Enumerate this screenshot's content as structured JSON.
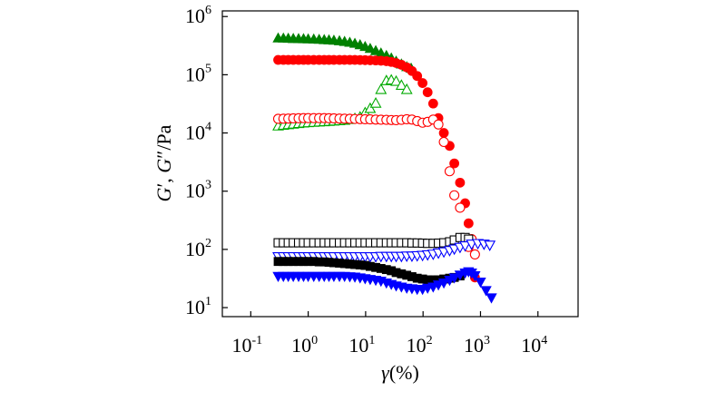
{
  "chart_data": {
    "type": "scatter",
    "xscale": "log",
    "yscale": "log",
    "xlim": [
      0.032,
      50000
    ],
    "ylim": [
      7,
      1250000
    ],
    "xlabel": {
      "italic": "γ",
      "rest": "(%)"
    },
    "ylabel": {
      "g1": "G",
      "p1": "′, ",
      "g2": "G",
      "p2": "″/Pa"
    },
    "x_ticks": [
      {
        "base": "10",
        "exp": "-1",
        "value": 0.1
      },
      {
        "base": "10",
        "exp": "0",
        "value": 1
      },
      {
        "base": "10",
        "exp": "1",
        "value": 10
      },
      {
        "base": "10",
        "exp": "2",
        "value": 100
      },
      {
        "base": "10",
        "exp": "3",
        "value": 1000
      },
      {
        "base": "10",
        "exp": "4",
        "value": 10000
      }
    ],
    "y_ticks": [
      {
        "base": "10",
        "exp": "1",
        "value": 10
      },
      {
        "base": "10",
        "exp": "2",
        "value": 100
      },
      {
        "base": "10",
        "exp": "3",
        "value": 1000
      },
      {
        "base": "10",
        "exp": "4",
        "value": 10000
      },
      {
        "base": "10",
        "exp": "5",
        "value": 100000
      },
      {
        "base": "10",
        "exp": "6",
        "value": 1000000
      }
    ],
    "series": [
      {
        "name": "green-G-prime",
        "marker": "triangle-up",
        "filled": true,
        "color": "#008000",
        "points": [
          [
            0.3,
            420000
          ],
          [
            0.37,
            418000
          ],
          [
            0.45,
            415000
          ],
          [
            0.55,
            412000
          ],
          [
            0.68,
            410000
          ],
          [
            0.83,
            408000
          ],
          [
            1.0,
            405000
          ],
          [
            1.25,
            402000
          ],
          [
            1.55,
            398000
          ],
          [
            1.9,
            394000
          ],
          [
            2.3,
            390000
          ],
          [
            2.8,
            384000
          ],
          [
            3.5,
            376000
          ],
          [
            4.3,
            366000
          ],
          [
            5.3,
            354000
          ],
          [
            6.5,
            340000
          ],
          [
            8.0,
            322000
          ],
          [
            9.8,
            300000
          ],
          [
            12,
            278000
          ],
          [
            15,
            255000
          ],
          [
            18.5,
            232000
          ],
          [
            23,
            210000
          ],
          [
            28,
            190000
          ],
          [
            34,
            168000
          ],
          [
            42,
            150000
          ],
          [
            52,
            135000
          ],
          [
            62,
            127000
          ]
        ]
      },
      {
        "name": "green-G-double-prime",
        "marker": "triangle-up",
        "filled": false,
        "color": "#00aa00",
        "points": [
          [
            0.3,
            13000
          ],
          [
            0.37,
            13400
          ],
          [
            0.45,
            13700
          ],
          [
            0.55,
            14000
          ],
          [
            0.68,
            14300
          ],
          [
            0.83,
            14600
          ],
          [
            1.0,
            14800
          ],
          [
            1.25,
            15000
          ],
          [
            1.55,
            15200
          ],
          [
            1.9,
            15400
          ],
          [
            2.3,
            15600
          ],
          [
            2.8,
            15800
          ],
          [
            3.5,
            16000
          ],
          [
            4.3,
            16300
          ],
          [
            5.3,
            16800
          ],
          [
            6.5,
            17500
          ],
          [
            8.0,
            18500
          ],
          [
            9.8,
            22000
          ],
          [
            12,
            26000
          ],
          [
            15,
            32000
          ],
          [
            18.5,
            55000
          ],
          [
            23,
            78000
          ],
          [
            28,
            80000
          ],
          [
            34,
            76000
          ],
          [
            42,
            65000
          ],
          [
            52,
            55000
          ]
        ]
      },
      {
        "name": "red-G-prime",
        "marker": "circle",
        "filled": true,
        "color": "#ff0000",
        "points": [
          [
            0.3,
            180000
          ],
          [
            0.37,
            180000
          ],
          [
            0.45,
            180000
          ],
          [
            0.55,
            180000
          ],
          [
            0.68,
            180000
          ],
          [
            0.83,
            180000
          ],
          [
            1.0,
            180000
          ],
          [
            1.25,
            180000
          ],
          [
            1.55,
            180000
          ],
          [
            1.9,
            180000
          ],
          [
            2.3,
            180000
          ],
          [
            2.8,
            180000
          ],
          [
            3.5,
            180000
          ],
          [
            4.3,
            180000
          ],
          [
            5.3,
            180000
          ],
          [
            6.5,
            180000
          ],
          [
            8.0,
            179000
          ],
          [
            9.8,
            178000
          ],
          [
            12,
            177000
          ],
          [
            15,
            176000
          ],
          [
            18.5,
            174000
          ],
          [
            23,
            171000
          ],
          [
            28,
            166000
          ],
          [
            34,
            159000
          ],
          [
            42,
            148000
          ],
          [
            52,
            134000
          ],
          [
            64,
            116000
          ],
          [
            79,
            95000
          ],
          [
            98,
            72000
          ],
          [
            120,
            50000
          ],
          [
            150,
            32000
          ],
          [
            185,
            18000
          ],
          [
            230,
            10000
          ],
          [
            290,
            6000
          ],
          [
            350,
            3000
          ],
          [
            440,
            1400
          ],
          [
            540,
            620
          ],
          [
            620,
            280
          ],
          [
            800,
            33
          ]
        ]
      },
      {
        "name": "red-G-double-prime",
        "marker": "circle",
        "filled": false,
        "color": "#ff0000",
        "points": [
          [
            0.3,
            17500
          ],
          [
            0.37,
            17600
          ],
          [
            0.45,
            17700
          ],
          [
            0.55,
            17800
          ],
          [
            0.68,
            17900
          ],
          [
            0.83,
            18000
          ],
          [
            1.0,
            18000
          ],
          [
            1.25,
            18000
          ],
          [
            1.55,
            18000
          ],
          [
            1.9,
            18000
          ],
          [
            2.3,
            17900
          ],
          [
            2.8,
            17800
          ],
          [
            3.5,
            17700
          ],
          [
            4.3,
            17600
          ],
          [
            5.3,
            17500
          ],
          [
            6.5,
            17400
          ],
          [
            8.0,
            17300
          ],
          [
            9.8,
            17200
          ],
          [
            12,
            17100
          ],
          [
            15,
            17000
          ],
          [
            18.5,
            16900
          ],
          [
            23,
            16800
          ],
          [
            28,
            16700
          ],
          [
            34,
            16600
          ],
          [
            42,
            16800
          ],
          [
            52,
            17200
          ],
          [
            64,
            17000
          ],
          [
            79,
            16000
          ],
          [
            98,
            15000
          ],
          [
            120,
            15500
          ],
          [
            150,
            17000
          ],
          [
            185,
            14000
          ],
          [
            230,
            7000
          ],
          [
            290,
            2200
          ],
          [
            350,
            850
          ],
          [
            440,
            520
          ],
          [
            540,
            140
          ],
          [
            620,
            110
          ],
          [
            700,
            150
          ],
          [
            800,
            82
          ]
        ]
      },
      {
        "name": "black-G-double-prime",
        "marker": "square",
        "filled": false,
        "color": "#000000",
        "points": [
          [
            0.3,
            130
          ],
          [
            0.37,
            130
          ],
          [
            0.45,
            130
          ],
          [
            0.55,
            130
          ],
          [
            0.68,
            130
          ],
          [
            0.83,
            130
          ],
          [
            1.0,
            130
          ],
          [
            1.25,
            130
          ],
          [
            1.55,
            130
          ],
          [
            1.9,
            130
          ],
          [
            2.3,
            130
          ],
          [
            2.8,
            130
          ],
          [
            3.5,
            130
          ],
          [
            4.3,
            130
          ],
          [
            5.3,
            130
          ],
          [
            6.5,
            130
          ],
          [
            8.0,
            130
          ],
          [
            9.8,
            130
          ],
          [
            12,
            130
          ],
          [
            15,
            130
          ],
          [
            18.5,
            130
          ],
          [
            23,
            130
          ],
          [
            28,
            130
          ],
          [
            34,
            130
          ],
          [
            42,
            130
          ],
          [
            52,
            130
          ],
          [
            64,
            129
          ],
          [
            79,
            129
          ],
          [
            98,
            128
          ],
          [
            120,
            127
          ],
          [
            150,
            127
          ],
          [
            185,
            128
          ],
          [
            230,
            130
          ],
          [
            290,
            135
          ],
          [
            350,
            145
          ],
          [
            440,
            160
          ],
          [
            540,
            160
          ],
          [
            620,
            150
          ]
        ]
      },
      {
        "name": "blue-G-double-prime",
        "marker": "triangle-down",
        "filled": false,
        "color": "#0000ff",
        "points": [
          [
            0.3,
            76
          ],
          [
            0.37,
            76
          ],
          [
            0.45,
            76
          ],
          [
            0.55,
            76
          ],
          [
            0.68,
            76
          ],
          [
            0.83,
            76
          ],
          [
            1.0,
            76
          ],
          [
            1.25,
            76
          ],
          [
            1.55,
            76
          ],
          [
            1.9,
            76
          ],
          [
            2.3,
            76
          ],
          [
            2.8,
            76
          ],
          [
            3.5,
            76
          ],
          [
            4.3,
            76
          ],
          [
            5.3,
            76
          ],
          [
            6.5,
            76
          ],
          [
            8.0,
            76
          ],
          [
            9.8,
            76
          ],
          [
            12,
            76
          ],
          [
            15,
            76
          ],
          [
            18.5,
            77
          ],
          [
            23,
            77
          ],
          [
            28,
            77
          ],
          [
            34,
            77
          ],
          [
            42,
            77
          ],
          [
            52,
            78
          ],
          [
            64,
            78
          ],
          [
            79,
            79
          ],
          [
            98,
            80
          ],
          [
            120,
            82
          ],
          [
            150,
            84
          ],
          [
            185,
            88
          ],
          [
            230,
            92
          ],
          [
            290,
            97
          ],
          [
            350,
            103
          ],
          [
            440,
            110
          ],
          [
            540,
            117
          ],
          [
            700,
            125
          ],
          [
            900,
            128
          ],
          [
            1150,
            125
          ],
          [
            1450,
            120
          ]
        ]
      },
      {
        "name": "black-G-prime",
        "marker": "square",
        "filled": true,
        "color": "#000000",
        "points": [
          [
            0.3,
            62
          ],
          [
            0.37,
            62
          ],
          [
            0.45,
            62
          ],
          [
            0.55,
            62
          ],
          [
            0.68,
            62
          ],
          [
            0.83,
            62
          ],
          [
            1.0,
            62
          ],
          [
            1.25,
            62
          ],
          [
            1.55,
            61
          ],
          [
            1.9,
            61
          ],
          [
            2.3,
            60
          ],
          [
            2.8,
            59
          ],
          [
            3.5,
            58
          ],
          [
            4.3,
            57
          ],
          [
            5.3,
            56
          ],
          [
            6.5,
            55
          ],
          [
            8.0,
            54
          ],
          [
            9.8,
            53
          ],
          [
            12,
            51
          ],
          [
            15,
            49
          ],
          [
            18.5,
            47
          ],
          [
            23,
            45
          ],
          [
            28,
            43
          ],
          [
            34,
            40
          ],
          [
            42,
            38
          ],
          [
            52,
            36
          ],
          [
            64,
            34
          ],
          [
            79,
            32
          ],
          [
            98,
            31
          ],
          [
            120,
            30
          ],
          [
            150,
            30
          ],
          [
            185,
            30
          ],
          [
            230,
            31
          ],
          [
            290,
            32
          ],
          [
            350,
            33
          ],
          [
            440,
            35
          ]
        ]
      },
      {
        "name": "blue-G-prime",
        "marker": "triangle-down",
        "filled": true,
        "color": "#0000ff",
        "points": [
          [
            0.3,
            35
          ],
          [
            0.37,
            35
          ],
          [
            0.45,
            35
          ],
          [
            0.55,
            35
          ],
          [
            0.68,
            35
          ],
          [
            0.83,
            35
          ],
          [
            1.0,
            35
          ],
          [
            1.25,
            35
          ],
          [
            1.55,
            35
          ],
          [
            1.9,
            35
          ],
          [
            2.3,
            35
          ],
          [
            2.8,
            35
          ],
          [
            3.5,
            35
          ],
          [
            4.3,
            35
          ],
          [
            5.3,
            34.5
          ],
          [
            6.5,
            34
          ],
          [
            8.0,
            33
          ],
          [
            9.8,
            32
          ],
          [
            12,
            31
          ],
          [
            15,
            30
          ],
          [
            18.5,
            29
          ],
          [
            23,
            27
          ],
          [
            28,
            25.5
          ],
          [
            34,
            24
          ],
          [
            42,
            23
          ],
          [
            52,
            22
          ],
          [
            64,
            21.5
          ],
          [
            79,
            21
          ],
          [
            98,
            21
          ],
          [
            120,
            22
          ],
          [
            150,
            23
          ],
          [
            185,
            25
          ],
          [
            230,
            27
          ],
          [
            290,
            30
          ],
          [
            350,
            33
          ],
          [
            440,
            37
          ],
          [
            540,
            40
          ],
          [
            620,
            42
          ],
          [
            700,
            40
          ],
          [
            800,
            36
          ],
          [
            1000,
            28
          ],
          [
            1250,
            20
          ],
          [
            1550,
            15
          ]
        ]
      }
    ]
  },
  "markers": [
    "triangle-up-filled",
    "triangle-up-open",
    "circle-filled",
    "circle-open",
    "square-open",
    "triangle-down-open",
    "square-filled",
    "triangle-down-filled"
  ]
}
